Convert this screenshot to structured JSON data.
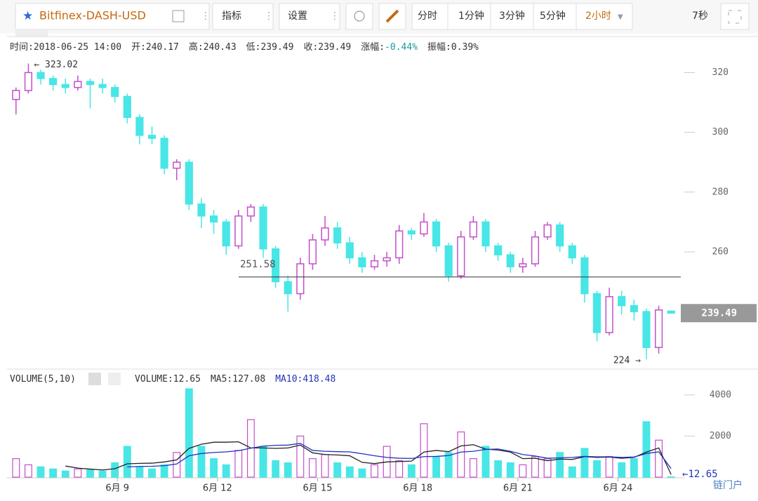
{
  "toolbar": {
    "symbol": "Bitfinex-DASH-USD",
    "indicator": "指标",
    "settings": "设置",
    "periods": [
      "分时",
      "1分钟",
      "3分钟",
      "5分钟"
    ],
    "active_period": "2小时",
    "refresh": "7秒"
  },
  "info": [
    {
      "label": "时间:",
      "value": "2018-06-25 14:00"
    },
    {
      "label": "开:",
      "value": "240.17"
    },
    {
      "label": "高:",
      "value": "240.43"
    },
    {
      "label": "低:",
      "value": "239.49"
    },
    {
      "label": "收:",
      "value": "239.49"
    },
    {
      "label": "涨幅:",
      "value": "-0.44%"
    },
    {
      "label": "振幅:",
      "value": "0.39%"
    }
  ],
  "chart_data": {
    "type": "candlestick",
    "up_color": "#c34fc9",
    "down_color": "#48e6e6",
    "candles": [
      [
        311,
        315,
        306,
        314
      ],
      [
        314,
        323.02,
        313,
        320
      ],
      [
        320,
        321,
        316,
        318
      ],
      [
        318,
        319,
        314,
        316
      ],
      [
        316,
        318,
        313,
        315
      ],
      [
        315,
        319,
        314,
        317
      ],
      [
        317,
        318,
        308,
        316
      ],
      [
        316,
        318,
        313,
        315
      ],
      [
        315,
        316,
        310,
        312
      ],
      [
        312,
        313,
        303,
        305
      ],
      [
        305,
        306,
        296,
        299
      ],
      [
        299,
        302,
        296,
        298
      ],
      [
        298,
        299,
        286,
        288
      ],
      [
        288,
        291,
        284,
        290
      ],
      [
        290,
        291,
        274,
        276
      ],
      [
        276,
        278,
        268,
        272
      ],
      [
        272,
        274,
        266,
        270
      ],
      [
        270,
        271,
        259,
        262
      ],
      [
        262,
        274,
        261,
        272
      ],
      [
        272,
        276,
        270,
        275
      ],
      [
        275,
        276,
        258,
        261
      ],
      [
        261,
        262,
        248,
        250
      ],
      [
        250,
        252,
        240,
        246
      ],
      [
        246,
        258,
        244,
        256
      ],
      [
        256,
        266,
        254,
        264
      ],
      [
        264,
        272,
        262,
        268
      ],
      [
        268,
        270,
        261,
        263
      ],
      [
        263,
        265,
        256,
        258
      ],
      [
        258,
        260,
        253,
        255
      ],
      [
        255,
        259,
        254,
        257
      ],
      [
        257,
        260,
        255,
        258
      ],
      [
        258,
        269,
        256,
        267
      ],
      [
        267,
        268,
        264,
        266
      ],
      [
        266,
        273,
        265,
        270
      ],
      [
        270,
        271,
        260,
        262
      ],
      [
        262,
        263,
        250,
        252
      ],
      [
        252,
        267,
        251,
        265
      ],
      [
        265,
        272,
        264,
        270
      ],
      [
        270,
        271,
        260,
        262
      ],
      [
        262,
        263,
        257,
        259
      ],
      [
        259,
        260,
        253,
        255
      ],
      [
        255,
        258,
        253,
        256
      ],
      [
        256,
        267,
        255,
        265
      ],
      [
        265,
        270,
        264,
        269
      ],
      [
        269,
        270,
        260,
        262
      ],
      [
        262,
        263,
        256,
        258
      ],
      [
        258,
        259,
        243,
        246
      ],
      [
        246,
        247,
        230,
        233
      ],
      [
        233,
        248,
        232,
        245
      ],
      [
        245,
        247,
        239,
        242
      ],
      [
        242,
        244,
        237,
        240
      ],
      [
        240,
        241,
        224,
        228
      ],
      [
        228,
        242,
        226,
        240.55
      ],
      [
        240.17,
        240.43,
        239.49,
        239.49
      ]
    ],
    "ylim": [
      221,
      325.5
    ],
    "yticks": [
      260,
      280,
      300,
      320
    ],
    "xlim": [
      -0.5,
      53.5
    ],
    "xticks": [
      {
        "value": 8.2,
        "label": "6月 9"
      },
      {
        "value": 16.3,
        "label": "6月 12"
      },
      {
        "value": 24.4,
        "label": "6月 15"
      },
      {
        "value": 32.5,
        "label": "6月 18"
      },
      {
        "value": 40.6,
        "label": "6月 21"
      },
      {
        "value": 48.7,
        "label": "6月 24"
      }
    ],
    "high_mark": {
      "label": "← 323.02",
      "value": 323.02,
      "index": 1
    },
    "low_mark": {
      "label": "224 →",
      "value": 224,
      "index": 51
    },
    "price_line": 251.58,
    "volume": {
      "title": "VOLUME(5,10)",
      "vol_label": "VOLUME:",
      "ma5_label": "MA5:",
      "ma10_label": "MA10:",
      "arrow": "←",
      "ma5_color": "#222222",
      "ma10_color": "#2233bb",
      "values": [
        900,
        600,
        500,
        400,
        300,
        400,
        350,
        300,
        700,
        1500,
        500,
        400,
        600,
        1200,
        4300,
        1500,
        900,
        600,
        1300,
        2800,
        1500,
        800,
        700,
        2000,
        900,
        1100,
        700,
        500,
        400,
        600,
        1500,
        800,
        600,
        2600,
        1000,
        1200,
        2200,
        900,
        1500,
        800,
        700,
        600,
        1000,
        900,
        1200,
        500,
        1400,
        800,
        1000,
        700,
        900,
        2700,
        1800,
        12.65
      ],
      "ma5": [
        null,
        null,
        null,
        null,
        540,
        440,
        390,
        350,
        410,
        650,
        670,
        680,
        740,
        840,
        1400,
        1600,
        1700,
        1700,
        1720,
        1420,
        1420,
        1400,
        1420,
        1560,
        1180,
        1100,
        1080,
        1040,
        720,
        660,
        740,
        760,
        780,
        1220,
        1300,
        1240,
        1520,
        1580,
        1360,
        1320,
        1220,
        900,
        920,
        800,
        880,
        860,
        1000,
        960,
        980,
        920,
        960,
        1220,
        1420,
        127.08
      ],
      "ma10": [
        null,
        null,
        null,
        null,
        null,
        null,
        null,
        null,
        null,
        500,
        520,
        530,
        560,
        640,
        1040,
        1150,
        1200,
        1230,
        1290,
        1410,
        1510,
        1550,
        1560,
        1640,
        1300,
        1260,
        1240,
        1230,
        1140,
        1040,
        960,
        920,
        910,
        1000,
        1010,
        1050,
        1220,
        1260,
        1350,
        1370,
        1260,
        1100,
        1030,
        920,
        940,
        960,
        1010,
        990,
        990,
        960,
        980,
        1150,
        1230,
        418.48
      ],
      "ylim": [
        0,
        5190
      ],
      "yticks": [
        2000,
        4000
      ]
    }
  },
  "watermark": "链门户"
}
